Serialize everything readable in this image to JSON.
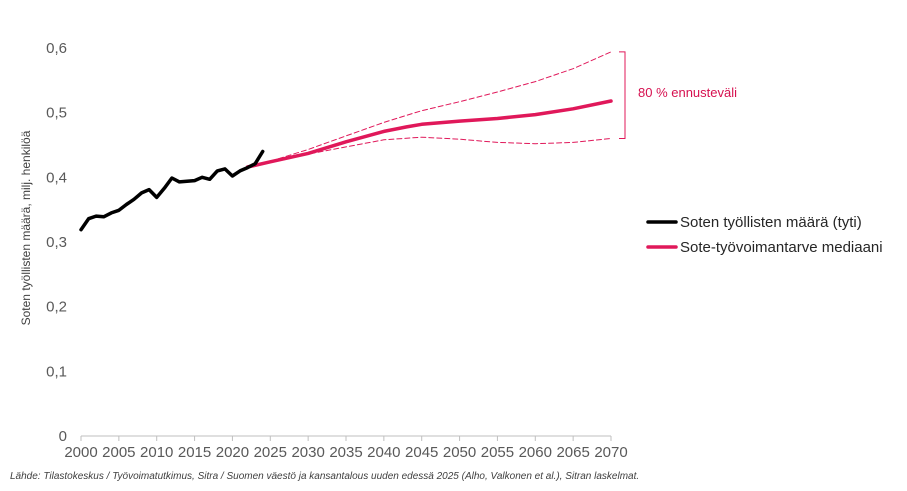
{
  "chart_data": {
    "type": "line",
    "ylabel": "Soten työllisten määrä, milj. henkilöä",
    "xlabel": "",
    "xlim": [
      2000,
      2070
    ],
    "ylim": [
      0,
      0.6
    ],
    "x_ticks": [
      "2000",
      "2005",
      "2010",
      "2015",
      "2020",
      "2025",
      "2030",
      "2035",
      "2040",
      "2045",
      "2050",
      "2055",
      "2060",
      "2065",
      "2070"
    ],
    "x_tick_values": [
      2000,
      2005,
      2010,
      2015,
      2020,
      2025,
      2030,
      2035,
      2040,
      2045,
      2050,
      2055,
      2060,
      2065,
      2070
    ],
    "y_ticks": [
      "0",
      "0,1",
      "0,2",
      "0,3",
      "0,4",
      "0,5",
      "0,6"
    ],
    "y_tick_values": [
      0,
      0.1,
      0.2,
      0.3,
      0.4,
      0.5,
      0.6
    ],
    "grid": false,
    "legend_position": "right",
    "series": [
      {
        "name": "Soten työllisten määrä (tyti)",
        "color": "#000000",
        "style": "solid",
        "x": [
          2000,
          2001,
          2002,
          2003,
          2004,
          2005,
          2006,
          2007,
          2008,
          2009,
          2010,
          2011,
          2012,
          2013,
          2014,
          2015,
          2016,
          2017,
          2018,
          2019,
          2020,
          2021,
          2022,
          2023,
          2024
        ],
        "y": [
          0.319,
          0.336,
          0.34,
          0.339,
          0.345,
          0.349,
          0.358,
          0.366,
          0.376,
          0.381,
          0.369,
          0.383,
          0.399,
          0.393,
          0.394,
          0.395,
          0.4,
          0.397,
          0.41,
          0.413,
          0.402,
          0.41,
          0.415,
          0.421,
          0.44
        ]
      },
      {
        "name": "Sote-työvoimantarve mediaani",
        "color": "#e0185a",
        "style": "solid",
        "x": [
          2022,
          2025,
          2030,
          2035,
          2040,
          2043,
          2045,
          2050,
          2055,
          2060,
          2065,
          2070
        ],
        "y": [
          0.416,
          0.424,
          0.437,
          0.455,
          0.471,
          0.478,
          0.482,
          0.487,
          0.491,
          0.497,
          0.506,
          0.518
        ]
      },
      {
        "name": "",
        "color": "#e0185a",
        "style": "dashed",
        "x": [
          2022,
          2025,
          2030,
          2035,
          2040,
          2043,
          2045,
          2050,
          2055,
          2060,
          2065,
          2070
        ],
        "y": [
          0.416,
          0.425,
          0.443,
          0.464,
          0.485,
          0.496,
          0.503,
          0.517,
          0.532,
          0.548,
          0.568,
          0.594
        ]
      },
      {
        "name": "",
        "color": "#e0185a",
        "style": "dashed",
        "x": [
          2022,
          2025,
          2030,
          2035,
          2040,
          2045,
          2050,
          2055,
          2060,
          2065,
          2070
        ],
        "y": [
          0.416,
          0.423,
          0.436,
          0.447,
          0.458,
          0.462,
          0.459,
          0.454,
          0.452,
          0.454,
          0.46
        ]
      }
    ],
    "annotations": [
      {
        "text": "80 % ennusteväli",
        "color": "#d6104f"
      }
    ]
  },
  "source_note": "Lähde: Tilastokeskus / Työvoimatutkimus, Sitra / Suomen väestö ja kansantalous uuden edessä 2025 (Alho, Valkonen et al.), Sitran laskelmat."
}
